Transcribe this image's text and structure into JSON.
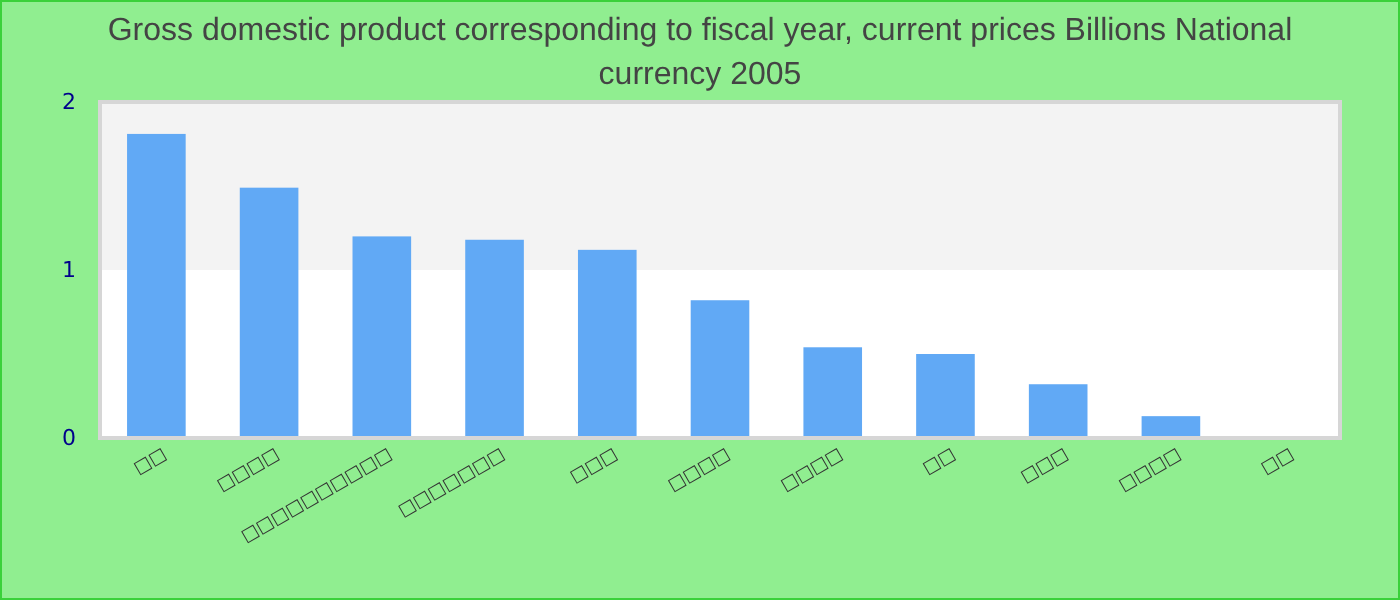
{
  "chart_data": {
    "type": "bar",
    "title": "Gross domestic product corresponding to fiscal year, current prices Billions National currency 2005",
    "categories": [
      "□□",
      "□□□□",
      "□□□□□□□□□□",
      "□□□□□□□",
      "□□□",
      "□□□□",
      "□□□□",
      "□□",
      "□□□",
      "□□□□",
      "□□"
    ],
    "values": [
      1.81,
      1.49,
      1.2,
      1.18,
      1.12,
      0.82,
      0.54,
      0.5,
      0.32,
      0.13,
      0
    ],
    "color": "#61a9f5",
    "ylim": [
      0,
      2
    ],
    "yticks": [
      0,
      1,
      2
    ],
    "bands": [
      {
        "axis": "y",
        "from": 1,
        "to": 2,
        "color": "#f3f3f3"
      }
    ]
  }
}
